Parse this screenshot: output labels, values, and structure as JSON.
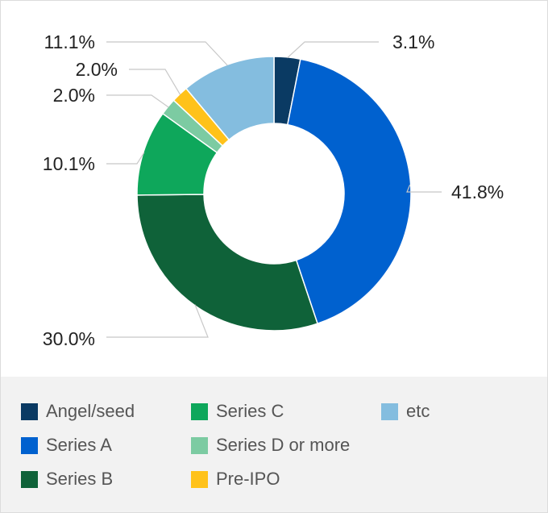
{
  "chart_data": {
    "type": "pie",
    "variant": "donut",
    "title": "",
    "slices": [
      {
        "name": "Angel/seed",
        "value": 3.1,
        "label": "3.1%",
        "color": "#0a3a63"
      },
      {
        "name": "Series A",
        "value": 41.8,
        "label": "41.8%",
        "color": "#0061cf"
      },
      {
        "name": "Series B",
        "value": 30.0,
        "label": "30.0%",
        "color": "#0f6239"
      },
      {
        "name": "Series C",
        "value": 10.1,
        "label": "10.1%",
        "color": "#0ea75b"
      },
      {
        "name": "Series D or more",
        "value": 2.0,
        "label": "2.0%",
        "color": "#7ccba2"
      },
      {
        "name": "Pre-IPO",
        "value": 2.0,
        "label": "2.0%",
        "color": "#ffc21a"
      },
      {
        "name": "etc",
        "value": 11.1,
        "label": "11.1%",
        "color": "#84bddf"
      }
    ],
    "legend_position": "bottom"
  }
}
